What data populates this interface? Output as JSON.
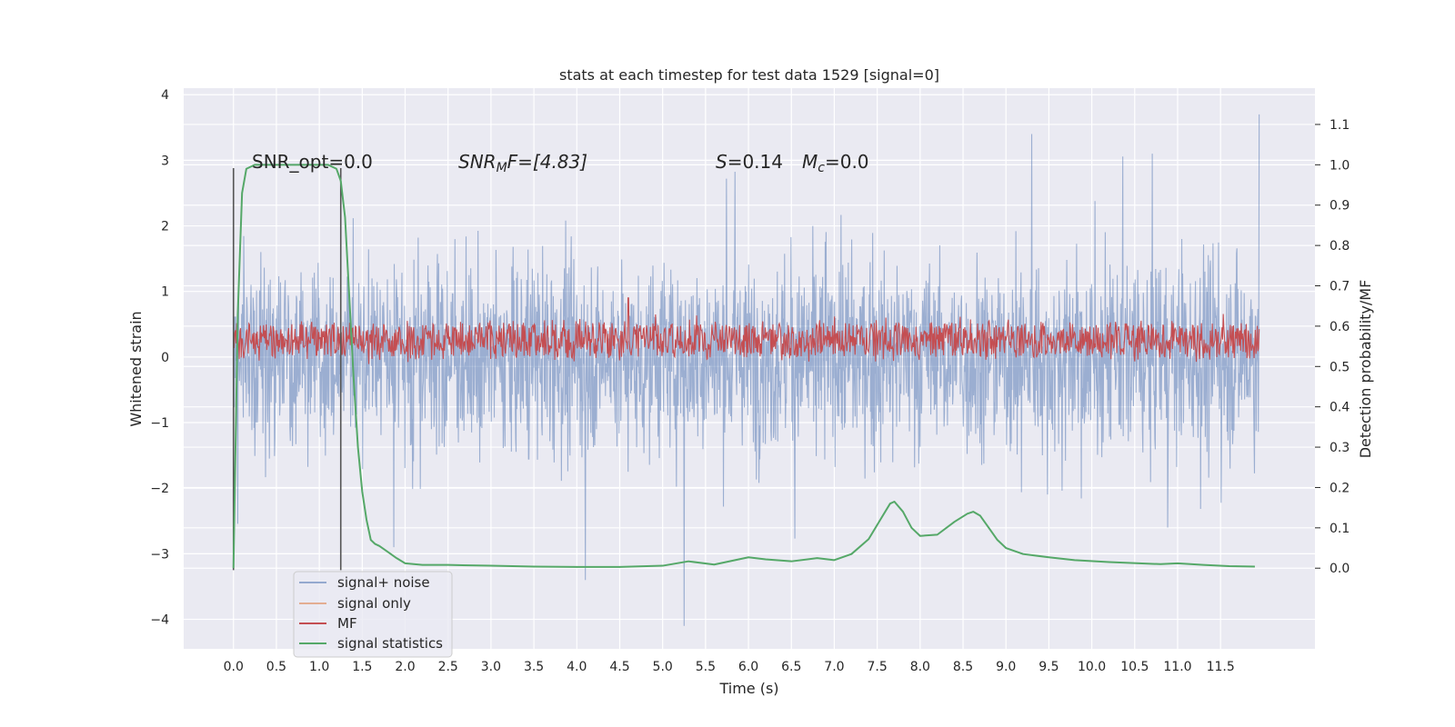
{
  "chart_data": {
    "type": "line",
    "title": "stats at each timestep for test data 1529 [signal=0]",
    "xlabel": "Time (s)",
    "ylabel": "Whitened strain",
    "ylabel_right": "Detection probability/MF",
    "xlim": [
      -0.58,
      12.6
    ],
    "ylim": [
      -4.45,
      4.1
    ],
    "ylim_right": [
      -0.2,
      1.19
    ],
    "xticks": [
      "0.0",
      "0.5",
      "1.0",
      "1.5",
      "2.0",
      "2.5",
      "3.0",
      "3.5",
      "4.0",
      "4.5",
      "5.0",
      "5.5",
      "6.0",
      "6.5",
      "7.0",
      "7.5",
      "8.0",
      "8.5",
      "9.0",
      "9.5",
      "10.0",
      "10.5",
      "11.0",
      "11.5"
    ],
    "yticks_left": [
      "−4",
      "−3",
      "−2",
      "−1",
      "0",
      "1",
      "2",
      "3",
      "4"
    ],
    "yticks_right": [
      "0.0",
      "0.1",
      "0.2",
      "0.3",
      "0.4",
      "0.5",
      "0.6",
      "0.7",
      "0.8",
      "0.9",
      "1.0",
      "1.1"
    ],
    "grid": true,
    "legend_position": "lower-left",
    "series": [
      {
        "name": "signal+ noise",
        "color": "#4c72b0",
        "note": "dense noise trace, bulk range about -1.8 to 1.7, spikes to about 3.7 near 11.95 s and -4.1 near 5.25 s"
      },
      {
        "name": "signal only",
        "color": "#dd8452"
      },
      {
        "name": "MF",
        "color": "#c44e52",
        "note": "dense trace on right axis, mostly 0.52 to 0.62, peak about 0.67 near 4.6 s"
      },
      {
        "name": "signal statistics",
        "color": "#55a868",
        "x": [
          0.0,
          0.05,
          0.1,
          0.15,
          0.25,
          0.4,
          0.6,
          0.8,
          1.0,
          1.1,
          1.2,
          1.25,
          1.3,
          1.35,
          1.4,
          1.45,
          1.5,
          1.55,
          1.6,
          1.65,
          1.7,
          1.8,
          1.9,
          2.0,
          2.2,
          2.5,
          3.0,
          3.5,
          4.0,
          4.5,
          5.0,
          5.3,
          5.6,
          5.8,
          6.0,
          6.2,
          6.5,
          6.8,
          7.0,
          7.2,
          7.4,
          7.55,
          7.65,
          7.7,
          7.8,
          7.9,
          8.0,
          8.2,
          8.4,
          8.55,
          8.62,
          8.7,
          8.8,
          8.9,
          9.0,
          9.2,
          9.5,
          9.8,
          10.2,
          10.8,
          11.0,
          11.3,
          11.6,
          11.9
        ],
        "values": [
          0.0,
          0.63,
          0.93,
          0.99,
          1.0,
          1.0,
          1.0,
          1.0,
          1.0,
          1.0,
          0.99,
          0.96,
          0.87,
          0.67,
          0.47,
          0.3,
          0.19,
          0.12,
          0.07,
          0.06,
          0.055,
          0.04,
          0.025,
          0.012,
          0.008,
          0.008,
          0.006,
          0.004,
          0.003,
          0.003,
          0.006,
          0.017,
          0.009,
          0.018,
          0.027,
          0.022,
          0.017,
          0.025,
          0.02,
          0.035,
          0.072,
          0.125,
          0.16,
          0.165,
          0.14,
          0.1,
          0.08,
          0.083,
          0.115,
          0.135,
          0.14,
          0.13,
          0.1,
          0.07,
          0.05,
          0.035,
          0.027,
          0.02,
          0.015,
          0.01,
          0.012,
          0.008,
          0.005,
          0.004
        ]
      }
    ],
    "vlines": [
      0.0,
      1.25
    ],
    "annotations": {
      "snr_opt": "SNR_opt=0.0",
      "snr_mf_sym": "SNR",
      "snr_mf_sub": "M",
      "snr_mf_rest": "F=[4.83]",
      "s_sym": "S",
      "s_rest": "=0.14",
      "mc_sym": "M",
      "mc_sub": "c",
      "mc_rest": "=0.0"
    }
  }
}
